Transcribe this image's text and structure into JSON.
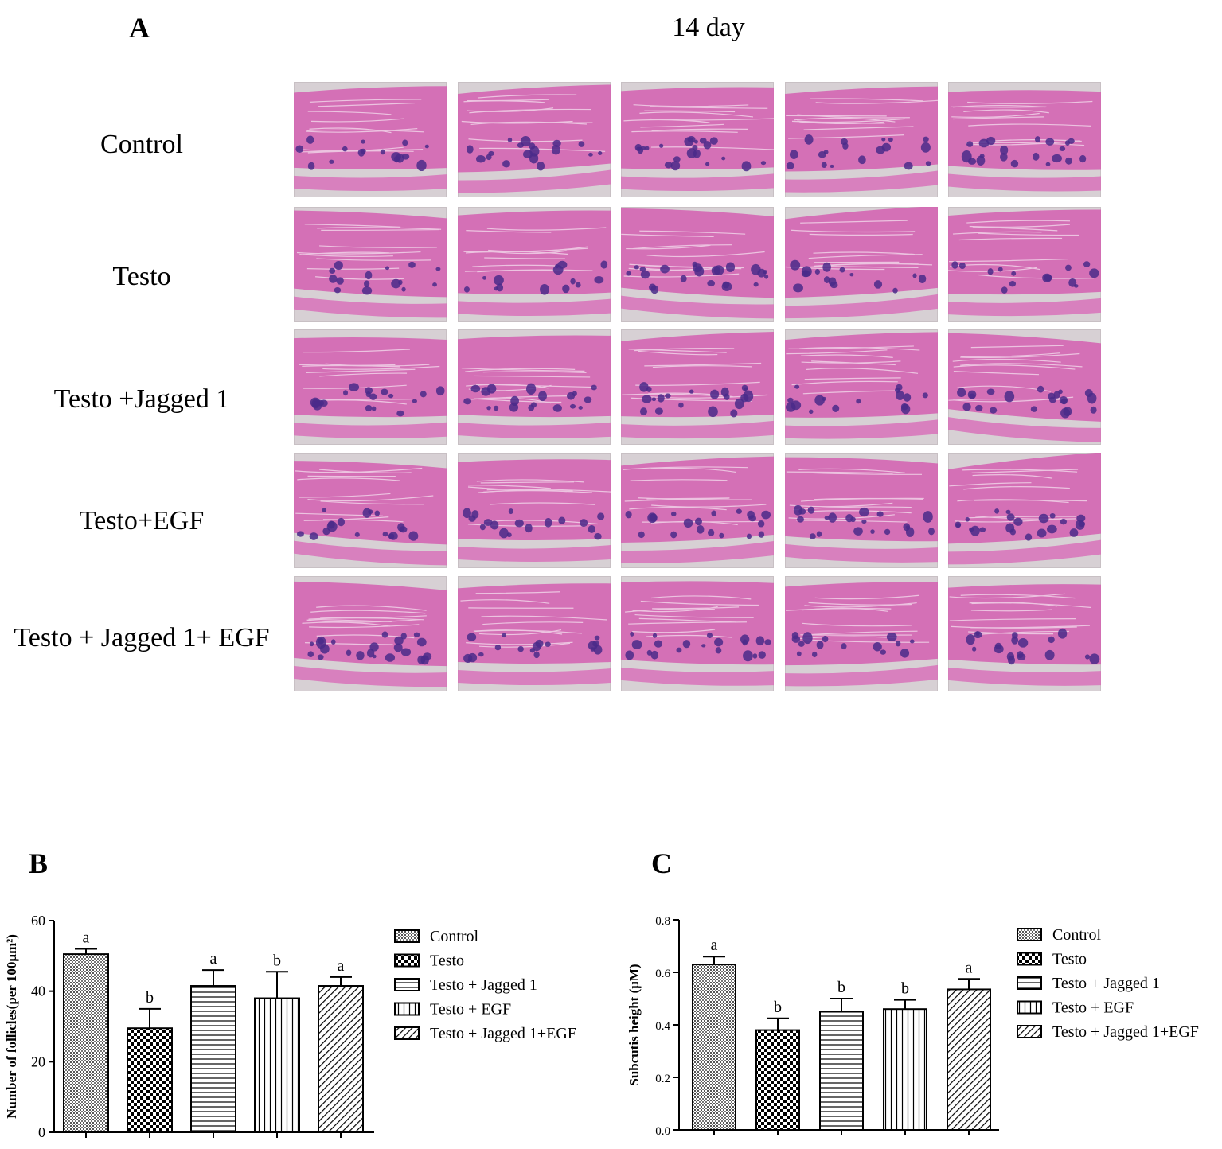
{
  "panel_a": {
    "letter": "A",
    "title": "14 day",
    "row_labels": [
      "Control",
      "Testo",
      "Testo +Jagged 1",
      "Testo+EGF",
      "Testo + Jagged 1+ EGF"
    ],
    "image_description": "H&E stained skin sections, 5 per group"
  },
  "chart_data": [
    {
      "letter": "B",
      "type": "bar",
      "categories": [
        "Control",
        "Testo",
        "Testo + Jagged 1",
        "Testo + EGF",
        "Testo + Jagged 1+EGF"
      ],
      "values": [
        50.5,
        29.5,
        41.5,
        38.0,
        41.5
      ],
      "errors": [
        1.5,
        5.5,
        4.5,
        7.5,
        2.5
      ],
      "significance": [
        "a",
        "b",
        "a",
        "b",
        "a"
      ],
      "patterns": [
        "dots",
        "checker",
        "hlines",
        "vlines",
        "diagonal"
      ],
      "xlabel": "",
      "ylabel": "Number of follicles(per 100μm²)",
      "ylim": [
        0,
        60
      ],
      "yticks": [
        "0",
        "20",
        "40",
        "60"
      ],
      "legend": [
        "Control",
        "Testo",
        "Testo + Jagged 1",
        "Testo + EGF",
        "Testo + Jagged 1+EGF"
      ],
      "legend_position": "right",
      "grid": false
    },
    {
      "letter": "C",
      "type": "bar",
      "categories": [
        "Control",
        "Testo",
        "Testo + Jagged 1",
        "Testo + EGF",
        "Testo + Jagged 1+EGF"
      ],
      "values": [
        0.63,
        0.38,
        0.45,
        0.46,
        0.535
      ],
      "errors": [
        0.03,
        0.045,
        0.05,
        0.035,
        0.04
      ],
      "significance": [
        "a",
        "b",
        "b",
        "b",
        "a"
      ],
      "patterns": [
        "dots",
        "checker",
        "hlines",
        "vlines",
        "diagonal"
      ],
      "xlabel": "",
      "ylabel": "Subcutis height (μM)",
      "ylim": [
        0,
        0.8
      ],
      "yticks": [
        "0.0",
        "0.2",
        "0.4",
        "0.6",
        "0.8"
      ],
      "legend": [
        "Control",
        "Testo",
        "Testo + Jagged 1",
        "Testo + EGF",
        "Testo + Jagged 1+EGF"
      ],
      "legend_position": "right",
      "grid": false
    }
  ]
}
